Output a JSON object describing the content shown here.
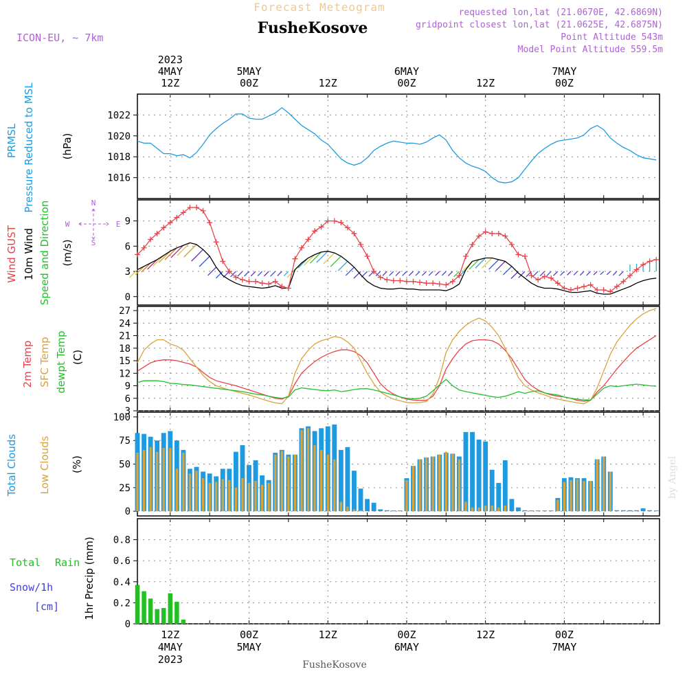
{
  "header": {
    "title": "Forecast Meteogram",
    "place": "FusheKosove",
    "model": "ICON-EU, ~ 7km",
    "requested": "requested lon,lat (21.0670E, 42.6869N)",
    "gridpoint": "gridpoint closest lon,lat (21.0625E, 42.6875N)",
    "point_alt": "Point Altitude 543m",
    "model_alt": "Model Point Altitude 559.5m",
    "footer": "FusheKosove",
    "credit": "by Angel"
  },
  "time_axis": {
    "top": [
      {
        "h": 12,
        "lines": [
          "2023",
          "4MAY",
          "12Z"
        ]
      },
      {
        "h": 24,
        "lines": [
          "5MAY",
          "00Z"
        ]
      },
      {
        "h": 36,
        "lines": [
          "12Z"
        ]
      },
      {
        "h": 48,
        "lines": [
          "6MAY",
          "00Z"
        ]
      },
      {
        "h": 60,
        "lines": [
          "12Z"
        ]
      },
      {
        "h": 72,
        "lines": [
          "7MAY",
          "00Z"
        ]
      }
    ],
    "bottom": [
      {
        "h": 12,
        "lines": [
          "12Z",
          "4MAY",
          "2023"
        ]
      },
      {
        "h": 24,
        "lines": [
          "00Z",
          "5MAY"
        ]
      },
      {
        "h": 36,
        "lines": [
          "12Z"
        ]
      },
      {
        "h": 48,
        "lines": [
          "00Z",
          "6MAY"
        ]
      },
      {
        "h": 60,
        "lines": [
          "12Z"
        ]
      },
      {
        "h": 72,
        "lines": [
          "00Z",
          "7MAY"
        ]
      }
    ]
  },
  "panel_labels": {
    "pressure": [
      "PRMSL",
      "Pressure Reduced to MSL",
      "(hPa)"
    ],
    "wind": [
      "Wind GUST",
      "10m Wind",
      "Speed and Direction",
      "(m/s)"
    ],
    "compass": [
      "N",
      "W",
      "E",
      "S"
    ],
    "temp": [
      "2m Temp",
      "SFC Temp",
      "dewpt Temp",
      "(C)"
    ],
    "clouds": [
      "Total Clouds",
      "Low Clouds",
      "(%)"
    ],
    "precip": [
      "Total",
      "Rain",
      "Snow/1h",
      "[cm]",
      "1hr Precip (mm)"
    ]
  },
  "colors": {
    "pressure": "#1e9be0",
    "gust": "#e8424a",
    "wind": "#000000",
    "temp2m": "#e8424a",
    "sfctemp": "#d9a23b",
    "dewpt": "#22c02a",
    "total_clouds": "#1e9be0",
    "low_clouds": "#d9a23b",
    "rain": "#22c022",
    "snow": "#4040e0",
    "label_purple": "#b060d8",
    "title_orange": "#f0c890"
  },
  "chart_data": [
    {
      "type": "line",
      "name": "pressure",
      "ylim": [
        1014.0,
        1024.0
      ],
      "yticks": [
        1016,
        1018,
        1020,
        1022
      ],
      "x": [
        7,
        8,
        9,
        10,
        11,
        12,
        13,
        14,
        15,
        16,
        17,
        18,
        19,
        20,
        21,
        22,
        23,
        24,
        25,
        26,
        27,
        28,
        29,
        30,
        31,
        32,
        33,
        34,
        35,
        36,
        37,
        38,
        39,
        40,
        41,
        42,
        43,
        44,
        45,
        46,
        47,
        48,
        49,
        50,
        51,
        52,
        53,
        54,
        55,
        56,
        57,
        58,
        59,
        60,
        61,
        62,
        63,
        64,
        65,
        66,
        67,
        68,
        69,
        70,
        71,
        72,
        73,
        74,
        75,
        76,
        77,
        78,
        79,
        80,
        81,
        82,
        83,
        84,
        85,
        86
      ],
      "series": [
        {
          "name": "PRMSL",
          "values": [
            1019.5,
            1019.3,
            1019.3,
            1018.8,
            1018.3,
            1018.3,
            1018.1,
            1018.2,
            1017.9,
            1018.4,
            1019.2,
            1020.1,
            1020.7,
            1021.2,
            1021.6,
            1022.1,
            1022.1,
            1021.7,
            1021.6,
            1021.6,
            1021.9,
            1022.2,
            1022.7,
            1022.2,
            1021.6,
            1021.0,
            1020.6,
            1020.2,
            1019.6,
            1019.2,
            1018.5,
            1017.8,
            1017.4,
            1017.2,
            1017.4,
            1017.9,
            1018.6,
            1019.0,
            1019.3,
            1019.5,
            1019.4,
            1019.3,
            1019.3,
            1019.2,
            1019.4,
            1019.8,
            1020.1,
            1019.6,
            1018.6,
            1017.9,
            1017.4,
            1017.1,
            1016.9,
            1016.6,
            1016.0,
            1015.6,
            1015.5,
            1015.6,
            1016.0,
            1016.8,
            1017.6,
            1018.3,
            1018.8,
            1019.2,
            1019.5,
            1019.6,
            1019.7,
            1019.8,
            1020.1,
            1020.7,
            1021.0,
            1020.6,
            1019.8,
            1019.3,
            1018.9,
            1018.6,
            1018.2,
            1017.9,
            1017.8,
            1017.7
          ]
        }
      ]
    },
    {
      "type": "line",
      "name": "wind",
      "ylim": [
        -1.0,
        11.5
      ],
      "yticks": [
        0,
        3,
        6,
        9
      ],
      "x": [
        7,
        8,
        9,
        10,
        11,
        12,
        13,
        14,
        15,
        16,
        17,
        18,
        19,
        20,
        21,
        22,
        23,
        24,
        25,
        26,
        27,
        28,
        29,
        30,
        31,
        32,
        33,
        34,
        35,
        36,
        37,
        38,
        39,
        40,
        41,
        42,
        43,
        44,
        45,
        46,
        47,
        48,
        49,
        50,
        51,
        52,
        53,
        54,
        55,
        56,
        57,
        58,
        59,
        60,
        61,
        62,
        63,
        64,
        65,
        66,
        67,
        68,
        69,
        70,
        71,
        72,
        73,
        74,
        75,
        76,
        77,
        78,
        79,
        80,
        81,
        82,
        83,
        84,
        85,
        86
      ],
      "series": [
        {
          "name": "Wind GUST",
          "values": [
            5.0,
            5.8,
            6.8,
            7.5,
            8.2,
            8.8,
            9.4,
            10.0,
            10.6,
            10.6,
            10.2,
            8.8,
            6.5,
            4.2,
            3.0,
            2.3,
            2.0,
            1.8,
            1.8,
            1.6,
            1.5,
            1.8,
            1.2,
            1.0,
            4.5,
            5.8,
            6.8,
            7.8,
            8.3,
            9.0,
            9.0,
            8.8,
            8.2,
            7.5,
            6.2,
            4.8,
            3.0,
            2.3,
            2.0,
            1.9,
            1.9,
            1.8,
            1.8,
            1.7,
            1.6,
            1.6,
            1.5,
            1.4,
            1.8,
            2.5,
            4.8,
            6.2,
            7.2,
            7.7,
            7.5,
            7.5,
            7.2,
            6.2,
            5.0,
            4.8,
            2.5,
            2.0,
            2.4,
            2.2,
            1.6,
            1.0,
            0.8,
            1.0,
            1.2,
            1.4,
            0.8,
            0.8,
            0.6,
            1.2,
            1.8,
            2.5,
            3.2,
            3.8,
            4.2,
            4.4
          ]
        },
        {
          "name": "10m Wind",
          "values": [
            3.2,
            3.6,
            4.0,
            4.4,
            4.9,
            5.4,
            5.8,
            6.1,
            6.4,
            6.2,
            5.6,
            4.8,
            3.5,
            2.5,
            2.0,
            1.6,
            1.3,
            1.2,
            1.1,
            1.0,
            1.1,
            1.3,
            1.0,
            1.0,
            3.2,
            4.0,
            4.6,
            5.0,
            5.3,
            5.4,
            5.2,
            4.8,
            4.2,
            3.5,
            2.6,
            1.8,
            1.3,
            1.0,
            0.9,
            0.9,
            1.0,
            0.9,
            0.9,
            0.8,
            0.8,
            0.8,
            0.8,
            0.7,
            1.0,
            1.5,
            3.2,
            4.2,
            4.4,
            4.6,
            4.6,
            4.4,
            4.2,
            3.6,
            2.8,
            2.2,
            1.6,
            1.2,
            1.0,
            1.0,
            0.9,
            0.7,
            0.5,
            0.5,
            0.6,
            0.7,
            0.4,
            0.3,
            0.3,
            0.6,
            0.9,
            1.2,
            1.6,
            1.9,
            2.1,
            2.2
          ]
        }
      ]
    },
    {
      "type": "line",
      "name": "temperature",
      "ylim": [
        3,
        28
      ],
      "yticks": [
        3,
        6,
        9,
        12,
        15,
        18,
        21,
        24,
        27
      ],
      "x": [
        7,
        8,
        9,
        10,
        11,
        12,
        13,
        14,
        15,
        16,
        17,
        18,
        19,
        20,
        21,
        22,
        23,
        24,
        25,
        26,
        27,
        28,
        29,
        30,
        31,
        32,
        33,
        34,
        35,
        36,
        37,
        38,
        39,
        40,
        41,
        42,
        43,
        44,
        45,
        46,
        47,
        48,
        49,
        50,
        51,
        52,
        53,
        54,
        55,
        56,
        57,
        58,
        59,
        60,
        61,
        62,
        63,
        64,
        65,
        66,
        67,
        68,
        69,
        70,
        71,
        72,
        73,
        74,
        75,
        76,
        77,
        78,
        79,
        80,
        81,
        82,
        83,
        84,
        85,
        86
      ],
      "series": [
        {
          "name": "2m Temp",
          "values": [
            12.5,
            13.5,
            14.5,
            15.0,
            15.2,
            15.2,
            15.0,
            14.6,
            14.2,
            13.5,
            12.2,
            11.0,
            10.2,
            9.8,
            9.4,
            9.0,
            8.5,
            8.0,
            7.5,
            7.0,
            6.5,
            6.0,
            5.8,
            6.5,
            9.5,
            12.0,
            13.5,
            14.8,
            15.8,
            16.6,
            17.2,
            17.6,
            17.6,
            17.2,
            16.2,
            14.5,
            12.0,
            9.5,
            8.0,
            7.0,
            6.3,
            5.8,
            5.6,
            5.5,
            5.5,
            6.5,
            9.0,
            13.0,
            15.5,
            17.5,
            19.0,
            19.8,
            20.0,
            20.0,
            19.8,
            19.0,
            17.5,
            15.5,
            13.0,
            10.5,
            9.0,
            8.0,
            7.3,
            6.8,
            6.5,
            6.3,
            6.0,
            5.5,
            5.3,
            5.5,
            7.5,
            9.0,
            11.0,
            13.0,
            14.8,
            16.5,
            18.0,
            19.0,
            20.0,
            21.0
          ]
        },
        {
          "name": "SFC Temp",
          "values": [
            14.5,
            17.5,
            19.0,
            20.0,
            20.0,
            19.0,
            18.5,
            17.5,
            15.5,
            13.5,
            11.5,
            10.0,
            9.0,
            8.5,
            8.0,
            7.6,
            7.2,
            6.8,
            6.3,
            5.8,
            5.3,
            4.9,
            4.7,
            6.5,
            12.0,
            15.5,
            17.5,
            19.0,
            19.8,
            20.2,
            20.8,
            20.5,
            19.5,
            18.0,
            15.0,
            12.0,
            9.5,
            7.5,
            6.5,
            5.8,
            5.4,
            5.0,
            4.9,
            5.0,
            5.2,
            7.0,
            11.0,
            17.0,
            20.0,
            22.0,
            23.5,
            24.5,
            25.2,
            24.5,
            23.0,
            21.0,
            18.0,
            14.5,
            11.0,
            9.0,
            8.0,
            7.3,
            6.8,
            6.2,
            5.8,
            5.5,
            5.2,
            4.9,
            4.7,
            5.5,
            8.5,
            12.5,
            16.5,
            19.5,
            21.5,
            23.5,
            25.0,
            26.2,
            27.0,
            27.5
          ]
        },
        {
          "name": "dewpt Temp",
          "values": [
            9.8,
            10.2,
            10.2,
            10.2,
            10.0,
            9.6,
            9.5,
            9.3,
            9.2,
            9.0,
            8.8,
            8.6,
            8.4,
            8.2,
            8.0,
            7.8,
            7.6,
            7.3,
            7.0,
            6.8,
            6.5,
            6.2,
            6.0,
            6.3,
            8.0,
            8.5,
            8.3,
            8.1,
            7.9,
            7.8,
            8.0,
            7.6,
            7.8,
            8.1,
            8.3,
            8.3,
            8.0,
            7.6,
            7.2,
            6.8,
            6.3,
            6.0,
            5.9,
            6.0,
            6.5,
            7.8,
            9.2,
            10.5,
            9.0,
            8.0,
            7.6,
            7.3,
            7.0,
            6.7,
            6.4,
            6.2,
            6.5,
            7.0,
            7.6,
            7.2,
            7.6,
            7.8,
            7.3,
            7.0,
            6.8,
            6.3,
            6.0,
            5.8,
            5.6,
            5.6,
            7.0,
            8.4,
            9.0,
            8.8,
            9.0,
            9.2,
            9.4,
            9.2,
            9.0,
            8.9
          ]
        }
      ]
    },
    {
      "type": "bar",
      "name": "clouds",
      "ylim": [
        -5,
        105
      ],
      "yticks": [
        0,
        25,
        50,
        75,
        100
      ],
      "x": [
        7,
        8,
        9,
        10,
        11,
        12,
        13,
        14,
        15,
        16,
        17,
        18,
        19,
        20,
        21,
        22,
        23,
        24,
        25,
        26,
        27,
        28,
        29,
        30,
        31,
        32,
        33,
        34,
        35,
        36,
        37,
        38,
        39,
        40,
        41,
        42,
        43,
        44,
        45,
        46,
        47,
        48,
        49,
        50,
        51,
        52,
        53,
        54,
        55,
        56,
        57,
        58,
        59,
        60,
        61,
        62,
        63,
        64,
        65,
        66,
        67,
        68,
        69,
        70,
        71,
        72,
        73,
        74,
        75,
        76,
        77,
        78,
        79,
        80,
        81,
        82,
        83,
        84,
        85,
        86
      ],
      "series": [
        {
          "name": "Total Clouds",
          "values": [
            83,
            82,
            79,
            75,
            83,
            85,
            75,
            65,
            45,
            47,
            42,
            40,
            37,
            45,
            45,
            63,
            70,
            49,
            54,
            38,
            33,
            62,
            65,
            60,
            60,
            88,
            90,
            85,
            88,
            90,
            92,
            65,
            68,
            43,
            24,
            13,
            9,
            2,
            1,
            0,
            0,
            35,
            48,
            55,
            57,
            58,
            60,
            62,
            61,
            58,
            84,
            84,
            76,
            74,
            44,
            30,
            54,
            13,
            4,
            1,
            0,
            0,
            0,
            0,
            14,
            35,
            36,
            35,
            35,
            32,
            55,
            58,
            42,
            1,
            1,
            1,
            1,
            3,
            1,
            0
          ]
        },
        {
          "name": "Low Clouds",
          "values": [
            62,
            65,
            68,
            63,
            67,
            67,
            45,
            62,
            40,
            43,
            35,
            30,
            31,
            34,
            33,
            25,
            35,
            30,
            32,
            28,
            30,
            60,
            64,
            58,
            60,
            86,
            88,
            70,
            65,
            60,
            55,
            10,
            5,
            2,
            1,
            0,
            0,
            0,
            0,
            0,
            0,
            33,
            48,
            55,
            57,
            58,
            60,
            63,
            61,
            55,
            10,
            4,
            4,
            6,
            6,
            4,
            6,
            0,
            0,
            0,
            0,
            0,
            0,
            0,
            12,
            31,
            33,
            34,
            32,
            32,
            55,
            58,
            42,
            0,
            0,
            0,
            0,
            0,
            0,
            0
          ]
        }
      ]
    },
    {
      "type": "bar",
      "name": "precipitation",
      "ylim": [
        0,
        1.0
      ],
      "yticks": [
        0,
        0.2,
        0.4,
        0.6,
        0.8
      ],
      "x": [
        7,
        8,
        9,
        10,
        11,
        12,
        13,
        14,
        15
      ],
      "series": [
        {
          "name": "Total Rain",
          "values": [
            0.37,
            0.31,
            0.24,
            0.14,
            0.15,
            0.29,
            0.21,
            0.04,
            0.0
          ]
        }
      ]
    }
  ]
}
